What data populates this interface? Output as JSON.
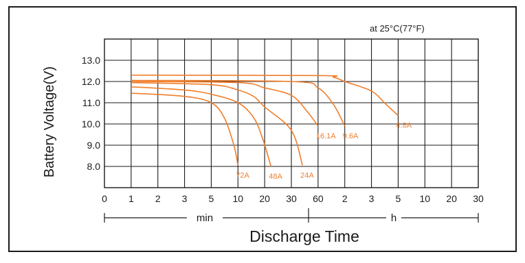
{
  "chart_data": {
    "type": "line",
    "title": "",
    "annotation": "at 25°C(77°F)",
    "ylabel": "Battery Voltage(V)",
    "xlabel": "Discharge Time",
    "y_ticks": [
      "13.0",
      "12.0",
      "11.0",
      "10.0",
      "9.0",
      "8.0"
    ],
    "ylim": [
      7.0,
      14.0
    ],
    "x_ticks": [
      {
        "label": "0",
        "minutes": 0
      },
      {
        "label": "1",
        "minutes": 1
      },
      {
        "label": "2",
        "minutes": 2
      },
      {
        "label": "3",
        "minutes": 3
      },
      {
        "label": "5",
        "minutes": 5
      },
      {
        "label": "10",
        "minutes": 10
      },
      {
        "label": "20",
        "minutes": 20
      },
      {
        "label": "30",
        "minutes": 30
      },
      {
        "label": "60",
        "minutes": 60
      },
      {
        "label": "2",
        "minutes": 120
      },
      {
        "label": "3",
        "minutes": 180
      },
      {
        "label": "5",
        "minutes": 300
      },
      {
        "label": "10",
        "minutes": 600
      },
      {
        "label": "20",
        "minutes": 1200
      },
      {
        "label": "30",
        "minutes": 1800
      }
    ],
    "unit_min": "min",
    "unit_h": "h",
    "grid": true,
    "line_color": "#f07d2a",
    "series": [
      {
        "name": "72A",
        "points": [
          [
            1,
            11.45
          ],
          [
            3,
            11.3
          ],
          [
            5,
            11.0
          ],
          [
            7,
            10.3
          ],
          [
            9,
            9.0
          ],
          [
            10,
            8.05
          ]
        ]
      },
      {
        "name": "48A",
        "points": [
          [
            1,
            11.75
          ],
          [
            3,
            11.6
          ],
          [
            5,
            11.4
          ],
          [
            10,
            11.0
          ],
          [
            15,
            10.3
          ],
          [
            19,
            9.3
          ],
          [
            22,
            8.0
          ]
        ]
      },
      {
        "name": "24A",
        "points": [
          [
            1,
            11.95
          ],
          [
            5,
            11.85
          ],
          [
            10,
            11.6
          ],
          [
            15,
            11.3
          ],
          [
            20,
            10.8
          ],
          [
            30,
            9.7
          ],
          [
            40,
            8.05
          ]
        ]
      },
      {
        "name": "16.1A",
        "points": [
          [
            1,
            12.0
          ],
          [
            10,
            11.95
          ],
          [
            20,
            11.7
          ],
          [
            30,
            11.35
          ],
          [
            45,
            10.6
          ],
          [
            60,
            9.9
          ]
        ]
      },
      {
        "name": "9.6A",
        "points": [
          [
            1,
            12.05
          ],
          [
            30,
            12.0
          ],
          [
            60,
            11.7
          ],
          [
            90,
            10.9
          ],
          [
            120,
            9.9
          ]
        ]
      },
      {
        "name": "4.8A",
        "points": [
          [
            1,
            12.3
          ],
          [
            60,
            12.28
          ],
          [
            90,
            12.2
          ],
          [
            120,
            12.0
          ],
          [
            180,
            11.55
          ],
          [
            240,
            10.9
          ],
          [
            300,
            10.4
          ]
        ]
      }
    ]
  }
}
